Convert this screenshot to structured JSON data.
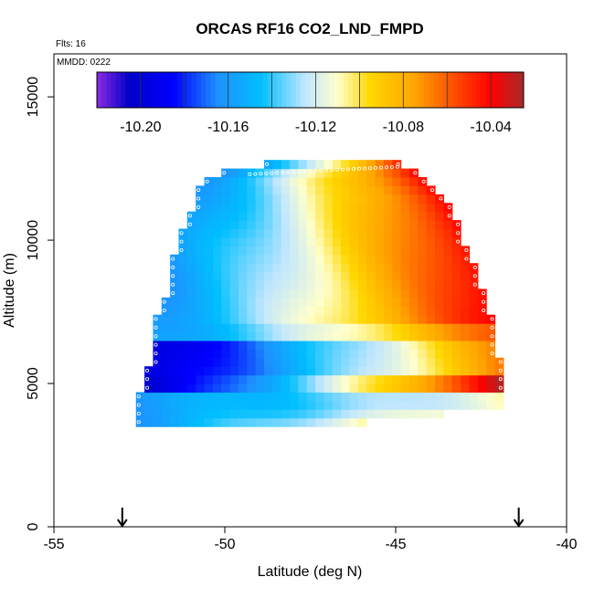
{
  "chart_data": {
    "type": "heatmap",
    "title": "ORCAS RF16 CO2_LND_FMPD",
    "annotations": [
      "Flts: 16",
      "MMDD: 0222"
    ],
    "xlabel": "Latitude (deg N)",
    "ylabel": "Altitude (m)",
    "xlim": [
      -55,
      -40
    ],
    "ylim": [
      0,
      16500
    ],
    "x_ticks": [
      -55,
      -50,
      -45,
      -40
    ],
    "x_tick_labels": [
      "-55",
      "-50",
      "-45",
      "-40"
    ],
    "y_ticks": [
      0,
      5000,
      10000,
      15000
    ],
    "y_tick_labels": [
      "0",
      "5000",
      "10000",
      "15000"
    ],
    "grid": false,
    "colorbar": {
      "placement": "top-inside",
      "range": [
        -10.22,
        -10.025
      ],
      "ticks": [
        -10.2,
        -10.16,
        -10.12,
        -10.08,
        -10.04
      ],
      "tick_labels": [
        "-10.20",
        "-10.16",
        "-10.12",
        "-10.08",
        "-10.04"
      ],
      "stops": [
        {
          "value": -10.22,
          "color": "#8a2be2"
        },
        {
          "value": -10.205,
          "color": "#0000c8"
        },
        {
          "value": -10.185,
          "color": "#0000ff"
        },
        {
          "value": -10.165,
          "color": "#1e90ff"
        },
        {
          "value": -10.145,
          "color": "#00bfff"
        },
        {
          "value": -10.125,
          "color": "#bfe6ff"
        },
        {
          "value": -10.11,
          "color": "#ffffcc"
        },
        {
          "value": -10.095,
          "color": "#ffd700"
        },
        {
          "value": -10.075,
          "color": "#ffa500"
        },
        {
          "value": -10.055,
          "color": "#ff4500"
        },
        {
          "value": -10.04,
          "color": "#ff0000"
        },
        {
          "value": -10.025,
          "color": "#a52a2a"
        }
      ]
    },
    "markers": [
      {
        "name": "down-arrow-start",
        "x": -53.0
      },
      {
        "name": "down-arrow-end",
        "x": -41.4
      }
    ],
    "field": {
      "lat_range": [
        -52.6,
        -41.9
      ],
      "alt_range": [
        3500,
        12700
      ],
      "cell_lat": 0.25,
      "cell_alt": 300,
      "envelope": [
        {
          "alt": 3500,
          "lat_min": -52.6,
          "lat_max": -47.0
        },
        {
          "alt": 4200,
          "lat_min": -52.6,
          "lat_max": -41.9
        },
        {
          "alt": 5600,
          "lat_min": -52.2,
          "lat_max": -41.9
        },
        {
          "alt": 7200,
          "lat_min": -52.0,
          "lat_max": -42.2
        },
        {
          "alt": 8400,
          "lat_min": -51.6,
          "lat_max": -42.5
        },
        {
          "alt": 10000,
          "lat_min": -51.4,
          "lat_max": -43.0
        },
        {
          "alt": 11500,
          "lat_min": -50.8,
          "lat_max": -43.6
        },
        {
          "alt": 12200,
          "lat_min": -50.6,
          "lat_max": -44.2
        },
        {
          "alt": 12700,
          "lat_min": -48.7,
          "lat_max": -44.8
        }
      ],
      "bands": [
        {
          "alt_min": 3500,
          "alt_max": 4800,
          "value_lo": -10.16,
          "value_hi": -10.11
        },
        {
          "alt_min": 4800,
          "alt_max": 5400,
          "value_lo": -10.205,
          "value_hi": -10.03
        },
        {
          "alt_min": 5400,
          "alt_max": 6500,
          "value_lo": -10.2,
          "value_hi": -10.07
        },
        {
          "alt_min": 6500,
          "alt_max": 7000,
          "value_lo": -10.16,
          "value_hi": -10.06
        },
        {
          "alt_min": 7000,
          "alt_max": 12800,
          "value_lo": -10.16,
          "value_hi": -10.04
        }
      ]
    }
  }
}
